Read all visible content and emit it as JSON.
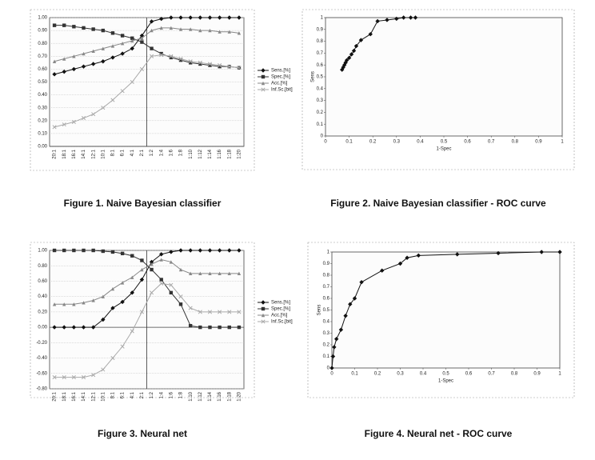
{
  "chart_data": [
    {
      "type": "line",
      "caption": "Figure 1. Naive Bayesian classifier",
      "categories": [
        "20:1",
        "18:1",
        "16:1",
        "14:1",
        "12:1",
        "10:1",
        "8:1",
        "6:1",
        "4:1",
        "2:1",
        "1:2",
        "1:4",
        "1:6",
        "1:8",
        "1:10",
        "1:12",
        "1:14",
        "1:16",
        "1:18",
        "1:20"
      ],
      "series": [
        {
          "name": "Sens.[%]",
          "color": "#111111",
          "marker": "diamond",
          "values": [
            0.56,
            0.58,
            0.6,
            0.62,
            0.64,
            0.66,
            0.69,
            0.72,
            0.76,
            0.86,
            0.97,
            0.99,
            1,
            1,
            1,
            1,
            1,
            1,
            1,
            1
          ]
        },
        {
          "name": "Spec.[%]",
          "color": "#333333",
          "marker": "square",
          "values": [
            0.94,
            0.94,
            0.93,
            0.92,
            0.91,
            0.9,
            0.88,
            0.86,
            0.84,
            0.81,
            0.76,
            0.72,
            0.69,
            0.67,
            0.65,
            0.64,
            0.63,
            0.62,
            0.62,
            0.61
          ]
        },
        {
          "name": "Acc.[%]",
          "color": "#888888",
          "marker": "triangle",
          "values": [
            0.66,
            0.68,
            0.7,
            0.72,
            0.74,
            0.76,
            0.78,
            0.8,
            0.82,
            0.84,
            0.9,
            0.92,
            0.92,
            0.91,
            0.91,
            0.9,
            0.9,
            0.89,
            0.89,
            0.88
          ]
        },
        {
          "name": "Inf.Sc.[bit]",
          "color": "#aaaaaa",
          "marker": "x",
          "values": [
            0.15,
            0.17,
            0.19,
            0.22,
            0.25,
            0.3,
            0.36,
            0.43,
            0.5,
            0.6,
            0.7,
            0.71,
            0.7,
            0.68,
            0.66,
            0.65,
            0.64,
            0.63,
            0.62,
            0.61
          ]
        }
      ],
      "ylim": [
        0,
        1
      ],
      "yticks": [
        {
          "value": 0,
          "label": "0.00"
        },
        {
          "value": 0.1,
          "label": "0.10"
        },
        {
          "value": 0.2,
          "label": "0.20"
        },
        {
          "value": 0.3,
          "label": "0.30"
        },
        {
          "value": 0.4,
          "label": "0.40"
        },
        {
          "value": 0.5,
          "label": "0.50"
        },
        {
          "value": 0.6,
          "label": "0.60"
        },
        {
          "value": 0.7,
          "label": "0.70"
        },
        {
          "value": 0.8,
          "label": "0.80"
        },
        {
          "value": 0.9,
          "label": "0.90"
        },
        {
          "value": 1,
          "label": "1.00"
        }
      ],
      "grid": true
    },
    {
      "type": "scatter",
      "caption": "Figure 2. Naive Bayesian classifier - ROC curve",
      "xlabel": "1-Spec",
      "ylabel": "Sens",
      "color": "#111111",
      "x": [
        0.07,
        0.075,
        0.08,
        0.085,
        0.09,
        0.1,
        0.11,
        0.12,
        0.13,
        0.15,
        0.19,
        0.22,
        0.26,
        0.3,
        0.33,
        0.36,
        0.38
      ],
      "values": [
        0.56,
        0.58,
        0.6,
        0.62,
        0.64,
        0.66,
        0.69,
        0.72,
        0.76,
        0.81,
        0.86,
        0.97,
        0.98,
        0.99,
        1,
        1,
        1
      ],
      "xlim": [
        0,
        1
      ],
      "xticks": [
        0,
        0.1,
        0.2,
        0.3,
        0.4,
        0.5,
        0.6,
        0.7,
        0.8,
        0.9,
        1
      ],
      "ylim": [
        0,
        1
      ],
      "yticks": [
        0,
        0.1,
        0.2,
        0.3,
        0.4,
        0.5,
        0.6,
        0.7,
        0.8,
        0.9,
        1
      ]
    },
    {
      "type": "line",
      "caption": "Figure 3. Neural net",
      "categories": [
        "20:1",
        "18:1",
        "16:1",
        "14:1",
        "12:1",
        "10:1",
        "8:1",
        "6:1",
        "4:1",
        "2:1",
        "1:2",
        "1:4",
        "1:6",
        "1:8",
        "1:10",
        "1:12",
        "1:14",
        "1:16",
        "1:18",
        "1:20"
      ],
      "series": [
        {
          "name": "Sens.[%]",
          "color": "#111111",
          "marker": "diamond",
          "values": [
            0,
            0,
            0,
            0,
            0,
            0.1,
            0.25,
            0.33,
            0.45,
            0.62,
            0.85,
            0.95,
            0.98,
            1,
            1,
            1,
            1,
            1,
            1,
            1
          ]
        },
        {
          "name": "Spec.[%]",
          "color": "#333333",
          "marker": "square",
          "values": [
            1,
            1,
            1,
            1,
            1,
            0.99,
            0.98,
            0.96,
            0.93,
            0.87,
            0.75,
            0.62,
            0.45,
            0.3,
            0.02,
            0,
            0,
            0,
            0,
            0
          ]
        },
        {
          "name": "Acc.[%]",
          "color": "#888888",
          "marker": "triangle",
          "values": [
            0.3,
            0.3,
            0.3,
            0.32,
            0.35,
            0.4,
            0.5,
            0.58,
            0.65,
            0.75,
            0.82,
            0.88,
            0.85,
            0.75,
            0.7,
            0.7,
            0.7,
            0.7,
            0.7,
            0.7
          ]
        },
        {
          "name": "Inf.Sc.[bit]",
          "color": "#aaaaaa",
          "marker": "x",
          "values": [
            -0.65,
            -0.65,
            -0.65,
            -0.65,
            -0.62,
            -0.55,
            -0.4,
            -0.25,
            -0.05,
            0.2,
            0.45,
            0.57,
            0.55,
            0.4,
            0.25,
            0.2,
            0.2,
            0.2,
            0.2,
            0.2
          ]
        }
      ],
      "ylim": [
        -0.8,
        1
      ],
      "yticks": [
        {
          "value": -0.8,
          "label": "-0.80"
        },
        {
          "value": -0.6,
          "label": "-0.60"
        },
        {
          "value": -0.4,
          "label": "-0.40"
        },
        {
          "value": -0.2,
          "label": "-0.20"
        },
        {
          "value": 0,
          "label": "0.00"
        },
        {
          "value": 0.2,
          "label": "0.20"
        },
        {
          "value": 0.4,
          "label": "0.40"
        },
        {
          "value": 0.6,
          "label": "0.60"
        },
        {
          "value": 0.8,
          "label": "0.80"
        },
        {
          "value": 1,
          "label": "1.00"
        }
      ],
      "grid": true
    },
    {
      "type": "scatter",
      "caption": "Figure 4. Neural net - ROC curve",
      "xlabel": "1-Spec",
      "ylabel": "Sens",
      "color": "#111111",
      "x": [
        0,
        0.005,
        0.01,
        0.02,
        0.04,
        0.06,
        0.08,
        0.1,
        0.13,
        0.22,
        0.3,
        0.33,
        0.38,
        0.55,
        0.73,
        0.92,
        1
      ],
      "values": [
        0,
        0.1,
        0.18,
        0.25,
        0.33,
        0.45,
        0.55,
        0.6,
        0.74,
        0.84,
        0.9,
        0.95,
        0.97,
        0.98,
        0.99,
        1,
        1
      ],
      "xlim": [
        0,
        1
      ],
      "xticks": [
        0,
        0.1,
        0.2,
        0.3,
        0.4,
        0.5,
        0.6,
        0.7,
        0.8,
        0.9,
        1
      ],
      "ylim": [
        0,
        1
      ],
      "yticks": [
        0,
        0.1,
        0.2,
        0.3,
        0.4,
        0.5,
        0.6,
        0.7,
        0.8,
        0.9,
        1
      ]
    }
  ]
}
